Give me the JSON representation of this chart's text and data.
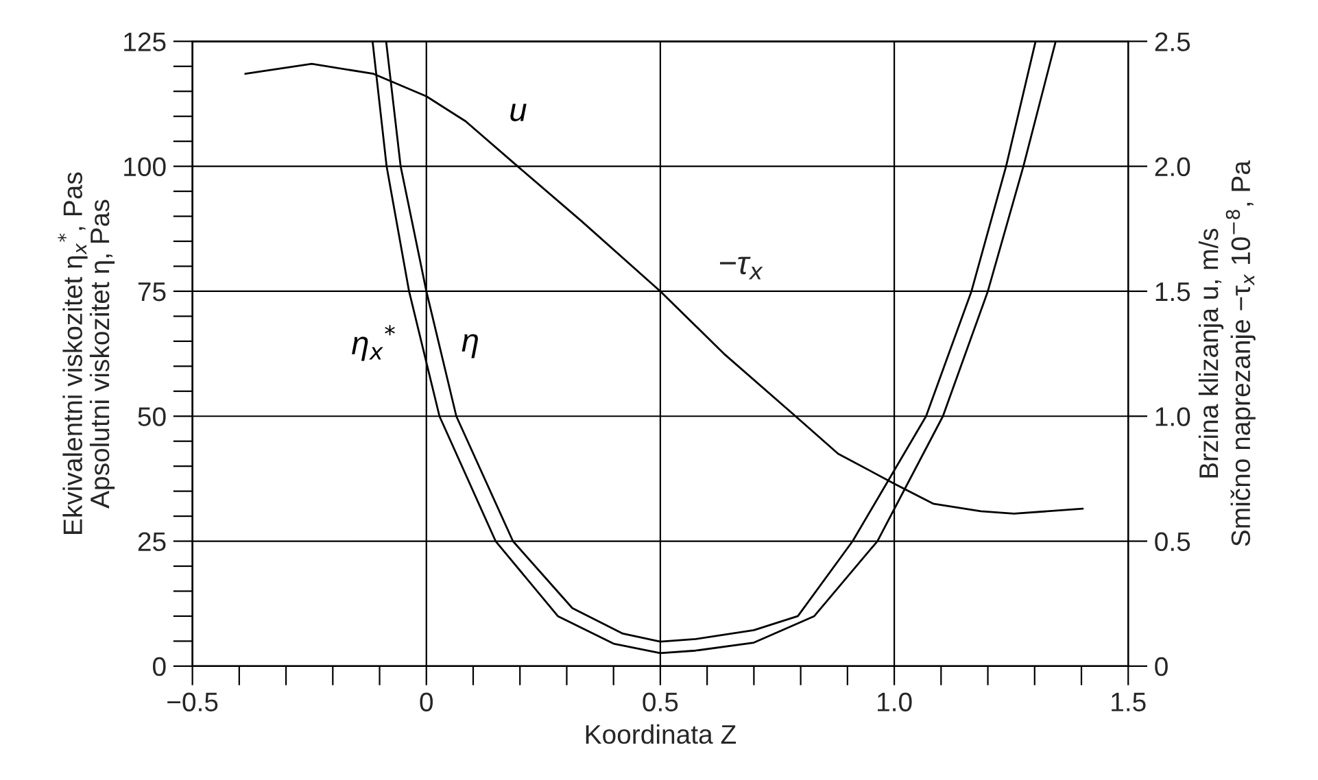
{
  "chart_data": {
    "type": "line",
    "xlabel": "Koordinata Z",
    "ylabel": "Ekvivalentni viskozitet η$_{x}$$^{*}$, Pas\nApsolutni viskozitet η, Pas",
    "y2label": "Brzina klizanja u, m/s\nSmično naprezanje −τ$_{x}$ 10$^{−8}$, Pa",
    "series": [
      {
        "name": "η$_{x}$$^{*}$",
        "color": "#000000",
        "x": [
          -0.115,
          -0.085,
          -0.037,
          0.028,
          0.148,
          0.281,
          0.4,
          0.5,
          0.575,
          0.7,
          0.829,
          0.964,
          1.104,
          1.2,
          1.276,
          1.345
        ],
        "values": [
          125,
          100,
          75,
          50,
          25,
          10,
          4.5,
          2.6,
          3.1,
          4.7,
          10,
          25,
          50,
          75,
          100,
          125
        ]
      },
      {
        "name": "η",
        "color": "#000000",
        "x": [
          -0.086,
          -0.055,
          0,
          0.064,
          0.185,
          0.312,
          0.42,
          0.5,
          0.575,
          0.7,
          0.794,
          0.911,
          1.068,
          1.165,
          1.239,
          1.302
        ],
        "values": [
          125,
          100,
          75,
          50,
          25,
          11.6,
          6.5,
          4.9,
          5.4,
          7.2,
          10,
          25,
          50,
          75,
          100,
          125
        ]
      },
      {
        "name": "u",
        "color": "#000000",
        "axis": "y2",
        "x": [
          -0.387,
          -0.245,
          -0.113,
          0,
          0.084,
          0.195,
          0.332,
          0.5,
          0.636,
          0.789,
          0.88,
          1.0,
          1.083,
          1.185,
          1.256,
          1.403
        ],
        "values": [
          2.37,
          2.41,
          2.37,
          2.28,
          2.18,
          2.0,
          1.78,
          1.5,
          1.25,
          1.0,
          0.85,
          0.73,
          0.65,
          0.62,
          0.61,
          0.63
        ]
      }
    ],
    "annotations": [
      "−τ$_{x}$"
    ],
    "xlim": [
      -0.5,
      1.5
    ],
    "xticks": [
      {
        "value": -0.5,
        "label": "−0.5"
      },
      {
        "value": -0.4,
        "label": null
      },
      {
        "value": -0.3,
        "label": null
      },
      {
        "value": -0.2,
        "label": null
      },
      {
        "value": -0.1,
        "label": null
      },
      0,
      {
        "value": 0.1,
        "label": null
      },
      {
        "value": 0.2,
        "label": null
      },
      {
        "value": 0.3,
        "label": null
      },
      {
        "value": 0.4,
        "label": null
      },
      0.5,
      {
        "value": 0.6,
        "label": null
      },
      {
        "value": 0.7,
        "label": null
      },
      {
        "value": 0.8,
        "label": null
      },
      {
        "value": 0.9,
        "label": null
      },
      {
        "value": 1.0,
        "label": "1.0"
      },
      {
        "value": 1.1,
        "label": null
      },
      {
        "value": 1.2,
        "label": null
      },
      {
        "value": 1.3,
        "label": null
      },
      {
        "value": 1.4,
        "label": null
      },
      1.5
    ],
    "ylim": [
      0,
      125
    ],
    "yticks": [
      0,
      {
        "value": 5,
        "label": null
      },
      {
        "value": 10,
        "label": null
      },
      {
        "value": 15,
        "label": null
      },
      {
        "value": 20,
        "label": null
      },
      25,
      {
        "value": 30,
        "label": null
      },
      {
        "value": 35,
        "label": null
      },
      {
        "value": 40,
        "label": null
      },
      {
        "value": 45,
        "label": null
      },
      50,
      {
        "value": 55,
        "label": null
      },
      {
        "value": 60,
        "label": null
      },
      {
        "value": 65,
        "label": null
      },
      {
        "value": 70,
        "label": null
      },
      75,
      {
        "value": 80,
        "label": null
      },
      {
        "value": 85,
        "label": null
      },
      {
        "value": 90,
        "label": null
      },
      {
        "value": 95,
        "label": null
      },
      100,
      {
        "value": 105,
        "label": null
      },
      {
        "value": 110,
        "label": null
      },
      {
        "value": 115,
        "label": null
      },
      {
        "value": 120,
        "label": null
      },
      125
    ],
    "y2lim": [
      0,
      2.5
    ],
    "y2ticks": [
      0,
      0.5,
      {
        "value": 1.0,
        "label": "1.0"
      },
      1.5,
      {
        "value": 2.0,
        "label": "2.0"
      },
      2.5
    ],
    "grid": true,
    "marker": "none",
    "line_style": "solid",
    "legend": false
  }
}
